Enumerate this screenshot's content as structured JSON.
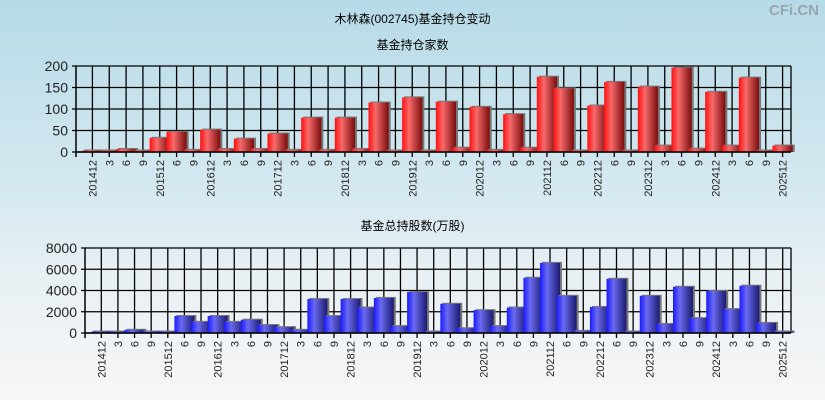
{
  "watermark": "CFi.CN",
  "main_title": "木林森(002745)基金持仓变动",
  "colors": {
    "red": "#e8242a",
    "blue": "#3a3ae8"
  },
  "chart_data": [
    {
      "type": "bar",
      "title": "基金持仓家数",
      "categories": [
        "201412",
        "3",
        "6",
        "9",
        "201512",
        "6",
        "9",
        "201612",
        "3",
        "6",
        "9",
        "201712",
        "3",
        "6",
        "9",
        "201812",
        "3",
        "6",
        "9",
        "201912",
        "3",
        "6",
        "9",
        "202012",
        "3",
        "6",
        "9",
        "202112",
        "6",
        "9",
        "202212",
        "6",
        "9",
        "202312",
        "3",
        "6",
        "9",
        "202412",
        "3",
        "6",
        "9",
        "202512"
      ],
      "values": [
        2,
        2,
        7,
        2,
        33,
        47,
        5,
        52,
        7,
        31,
        7,
        43,
        5,
        80,
        5,
        80,
        7,
        115,
        2,
        127,
        2,
        117,
        10,
        105,
        5,
        88,
        10,
        175,
        148,
        2,
        108,
        163,
        2,
        152,
        15,
        196,
        8,
        140,
        15,
        173,
        2,
        15
      ],
      "ylim": [
        0,
        200
      ],
      "yticks": [
        "0",
        "50",
        "100",
        "150",
        "200"
      ],
      "grid": true
    },
    {
      "type": "bar",
      "title": "基金总持股数(万股)",
      "categories": [
        "201412",
        "3",
        "6",
        "9",
        "201512",
        "6",
        "9",
        "201612",
        "3",
        "6",
        "9",
        "201712",
        "3",
        "6",
        "9",
        "201812",
        "3",
        "6",
        "9",
        "201912",
        "3",
        "6",
        "9",
        "202012",
        "3",
        "6",
        "9",
        "202112",
        "6",
        "9",
        "202212",
        "6",
        "9",
        "202312",
        "3",
        "6",
        "9",
        "202412",
        "3",
        "6",
        "9",
        "202512"
      ],
      "values": [
        100,
        100,
        300,
        100,
        100,
        1600,
        1050,
        1600,
        1050,
        1250,
        750,
        550,
        300,
        3200,
        1600,
        3200,
        2400,
        3300,
        650,
        3850,
        100,
        2750,
        450,
        2150,
        650,
        2400,
        5200,
        6600,
        3500,
        200,
        2450,
        5100,
        100,
        3500,
        850,
        4350,
        1400,
        3950,
        2250,
        4450,
        950,
        100
      ],
      "ylim": [
        0,
        8000
      ],
      "yticks": [
        "0",
        "2000",
        "4000",
        "6000",
        "8000"
      ],
      "grid": true
    }
  ]
}
